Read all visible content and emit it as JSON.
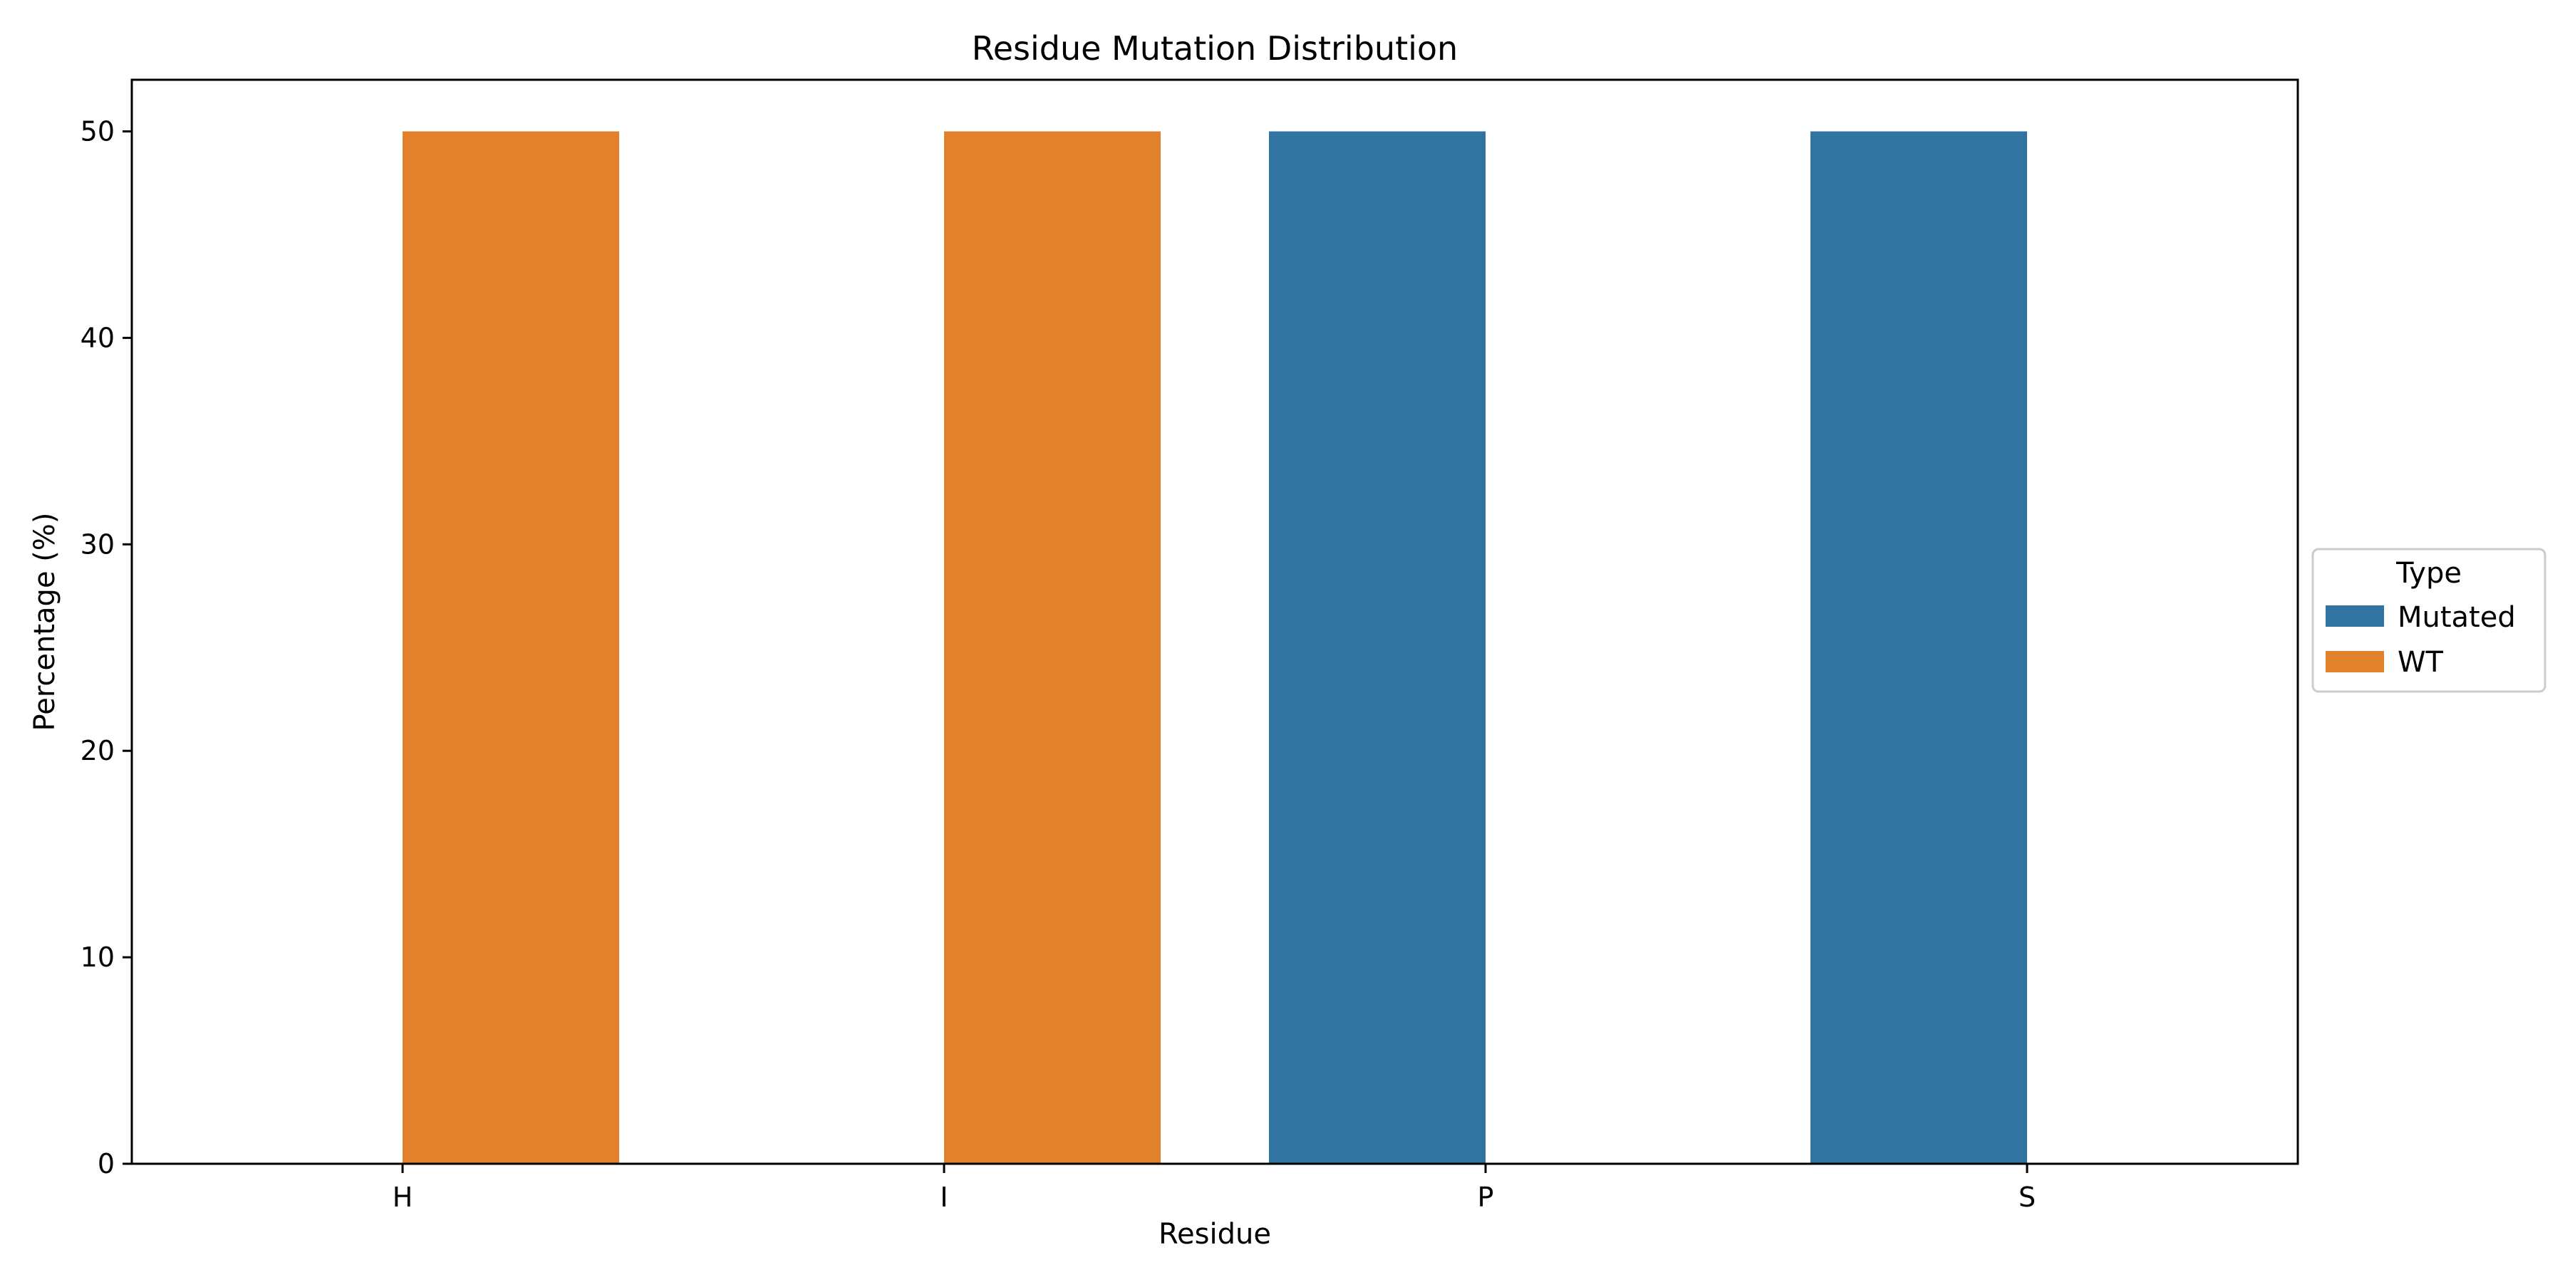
{
  "chart_data": {
    "type": "bar",
    "title": "Residue Mutation Distribution",
    "xlabel": "Residue",
    "ylabel": "Percentage (%)",
    "categories": [
      "H",
      "I",
      "P",
      "S"
    ],
    "series": [
      {
        "name": "Mutated",
        "color": "#3274a1",
        "values": [
          0,
          0,
          50,
          50
        ]
      },
      {
        "name": "WT",
        "color": "#e1812c",
        "values": [
          50,
          50,
          0,
          0
        ]
      }
    ],
    "ylim": [
      0,
      52.5
    ],
    "yticks": [
      0,
      10,
      20,
      30,
      40,
      50
    ],
    "grid": false,
    "legend": {
      "title": "Type",
      "placement": "center-right outside"
    }
  }
}
